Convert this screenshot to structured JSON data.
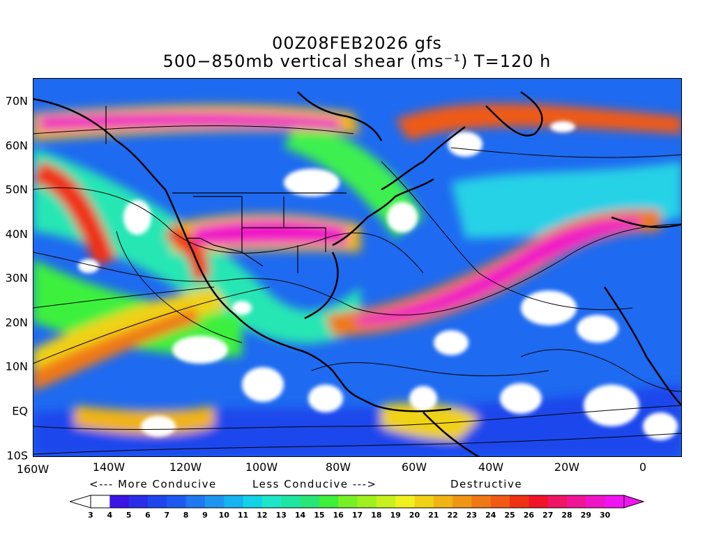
{
  "title": {
    "line1": "00Z08FEB2026 gfs",
    "line2": "500−850mb vertical shear (ms⁻¹) T=120 h"
  },
  "axes": {
    "y_labels": [
      "70N",
      "60N",
      "50N",
      "40N",
      "30N",
      "20N",
      "10N",
      "EQ",
      "10S"
    ],
    "x_labels": [
      "160W",
      "140W",
      "120W",
      "100W",
      "80W",
      "60W",
      "40W",
      "20W",
      "0"
    ]
  },
  "legend": {
    "more_conducive": "<--- More Conducive",
    "less_conducive": "Less Conducive --->",
    "destructive": "Destructive",
    "levels": [
      "3",
      "4",
      "5",
      "6",
      "7",
      "8",
      "9",
      "10",
      "11",
      "12",
      "13",
      "14",
      "15",
      "16",
      "17",
      "18",
      "19",
      "20",
      "21",
      "22",
      "23",
      "24",
      "25",
      "26",
      "27",
      "28",
      "29",
      "30"
    ],
    "colors": [
      "#ffffff",
      "#3c14e6",
      "#2a2ee8",
      "#1e46ec",
      "#1e5af0",
      "#1e78f0",
      "#1e96f0",
      "#14b4f0",
      "#14d2e6",
      "#1ee6c8",
      "#1ee6a0",
      "#28e678",
      "#3cf03c",
      "#78f028",
      "#a0f01e",
      "#c8f01e",
      "#f0f01e",
      "#f0d214",
      "#f0b414",
      "#f09614",
      "#f07814",
      "#f05a14",
      "#f03214",
      "#f01428",
      "#f01464",
      "#f01496",
      "#f014c8",
      "#f014f0"
    ]
  },
  "map": {
    "region": "North Atlantic / North America / Eastern Pacific",
    "lon_range": [
      -160,
      10
    ],
    "lat_range": [
      -10,
      75
    ]
  }
}
